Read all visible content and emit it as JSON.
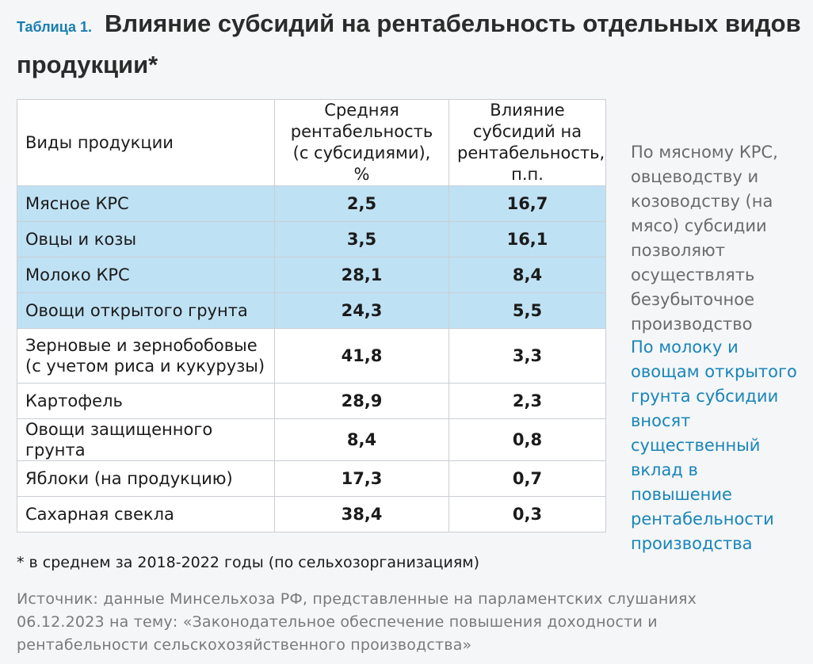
{
  "header": {
    "table_label": "Таблица 1.",
    "title": "Влияние субсидий на рентабельность отдельных видов продукции*"
  },
  "table": {
    "columns": [
      "Виды продукции",
      "Средняя рентабельность (с субсидиями), %",
      "Влияние субсидий на рентабельность, п.п."
    ],
    "rows": [
      {
        "name": "Мясное КРС",
        "profitability": "2,5",
        "subsidy_effect": "16,7",
        "highlight": true
      },
      {
        "name": "Овцы и козы",
        "profitability": "3,5",
        "subsidy_effect": "16,1",
        "highlight": true
      },
      {
        "name": "Молоко КРС",
        "profitability": "28,1",
        "subsidy_effect": "8,4",
        "highlight": true
      },
      {
        "name": "Овощи открытого грунта",
        "profitability": "24,3",
        "subsidy_effect": "5,5",
        "highlight": true
      },
      {
        "name": "Зерновые и зернобобовые (с учетом риса и кукурузы)",
        "profitability": "41,8",
        "subsidy_effect": "3,3",
        "highlight": false
      },
      {
        "name": "Картофель",
        "profitability": "28,9",
        "subsidy_effect": "2,3",
        "highlight": false
      },
      {
        "name": "Овощи защищенного грунта",
        "profitability": "8,4",
        "subsidy_effect": "0,8",
        "highlight": false
      },
      {
        "name": "Яблоки (на продукцию)",
        "profitability": "17,3",
        "subsidy_effect": "0,7",
        "highlight": false
      },
      {
        "name": "Сахарная свекла",
        "profitability": "38,4",
        "subsidy_effect": "0,3",
        "highlight": false
      }
    ]
  },
  "side_notes": {
    "grey": "По мясному КРС, овцеводству и козоводству (на мясо) субсидии позволяют осуществлять безубыточное производство",
    "blue": "По молоку и овощам открытого грунта субсидии вносят существенный вклад в повышение рентабельности производства"
  },
  "footnote": "* в среднем за 2018-2022 годы (по сельхозорганизациям)",
  "source": "Источник: данные Минсельхоза РФ, представленные на парламентских слушаниях 06.12.2023 на тему: «Законодательное обеспечение повышения доходности и рентабельности сельскохозяйственного производства»",
  "colors": {
    "accent_blue": "#1a85b8",
    "highlight_row": "#bfe1f4",
    "muted_text": "#6b6b6b"
  }
}
